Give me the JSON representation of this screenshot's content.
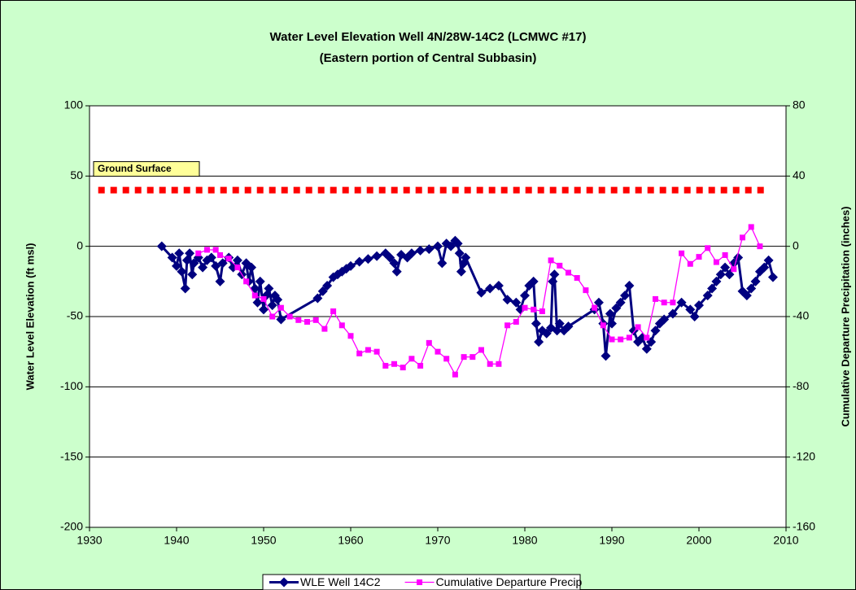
{
  "chart_data": {
    "type": "line",
    "title": "Water Level Elevation Well 4N/28W-14C2 (LCMWC #17)",
    "subtitle": "(Eastern portion of Central Subbasin)",
    "ylabel": "Water Level Elevation (ft msl)",
    "y2label": "Cumulative Departure Precipitation (inches)",
    "xlim": [
      1930,
      2010
    ],
    "xticks": [
      1930,
      1940,
      1950,
      1960,
      1970,
      1980,
      1990,
      2000,
      2010
    ],
    "ylim": [
      -200,
      100
    ],
    "yticks": [
      -200,
      -150,
      -100,
      -50,
      0,
      50,
      100
    ],
    "y2lim": [
      -160,
      80
    ],
    "y2ticks": [
      -160,
      -120,
      -80,
      -40,
      0,
      40,
      80
    ],
    "grid": true,
    "legend": "bottom",
    "annotations": [
      {
        "text": "Ground Surface",
        "value": 40,
        "x": [
          1931,
          2008
        ],
        "color": "#ff0000"
      }
    ],
    "series": [
      {
        "name": "WLE Well 14C2",
        "color": "#000080",
        "marker": "diamond",
        "x": [
          1938.3,
          1939.5,
          1940,
          1940.3,
          1940.6,
          1941,
          1941.2,
          1941.5,
          1941.8,
          1942,
          1942.5,
          1943,
          1943.5,
          1944,
          1944.5,
          1945,
          1945.3,
          1946,
          1946.5,
          1947,
          1947.5,
          1948,
          1948.3,
          1948.6,
          1949,
          1949.3,
          1949.6,
          1950,
          1950.3,
          1950.6,
          1951,
          1951.3,
          1951.6,
          1952,
          1956.2,
          1956.8,
          1957.3,
          1958,
          1958.5,
          1959,
          1959.5,
          1960,
          1961,
          1962,
          1963,
          1964,
          1964.5,
          1965,
          1965.3,
          1965.8,
          1966.5,
          1967,
          1968,
          1969,
          1970,
          1970.5,
          1971,
          1971.5,
          1972,
          1972.3,
          1972.5,
          1972.7,
          1973,
          1973.2,
          1975,
          1976,
          1977,
          1978,
          1979,
          1979.5,
          1980,
          1980.5,
          1981,
          1981.3,
          1981.6,
          1982,
          1982.5,
          1983,
          1983.2,
          1983.4,
          1983.7,
          1984,
          1984.5,
          1985,
          1988,
          1988.5,
          1989,
          1989.3,
          1989.8,
          1990,
          1990.5,
          1991,
          1991.5,
          1992,
          1992.5,
          1993,
          1993.5,
          1994,
          1994.5,
          1995,
          1995.5,
          1996,
          1997,
          1998,
          1999,
          1999.5,
          2000,
          2001,
          2001.5,
          2002,
          2002.5,
          2003,
          2003.5,
          2004,
          2004.5,
          2005,
          2005.5,
          2006,
          2006.5,
          2007,
          2007.5,
          2008,
          2008.5
        ],
        "values": [
          0,
          -8,
          -14,
          -5,
          -18,
          -30,
          -10,
          -5,
          -20,
          -12,
          -8,
          -15,
          -10,
          -8,
          -14,
          -25,
          -12,
          -8,
          -15,
          -10,
          -20,
          -12,
          -25,
          -15,
          -30,
          -40,
          -25,
          -45,
          -35,
          -30,
          -42,
          -35,
          -38,
          -52,
          -37,
          -32,
          -28,
          -22,
          -20,
          -18,
          -16,
          -14,
          -11,
          -9,
          -7,
          -5,
          -8,
          -12,
          -18,
          -6,
          -8,
          -5,
          -3,
          -2,
          0,
          -12,
          2,
          0,
          4,
          2,
          -5,
          -18,
          -12,
          -8,
          -33,
          -30,
          -28,
          -38,
          -40,
          -45,
          -35,
          -28,
          -25,
          -55,
          -68,
          -60,
          -62,
          -58,
          -25,
          -20,
          -60,
          -55,
          -60,
          -57,
          -45,
          -40,
          -55,
          -78,
          -48,
          -55,
          -44,
          -40,
          -35,
          -28,
          -60,
          -68,
          -65,
          -73,
          -68,
          -60,
          -55,
          -52,
          -48,
          -40,
          -45,
          -50,
          -42,
          -35,
          -30,
          -25,
          -20,
          -15,
          -20,
          -12,
          -8,
          -32,
          -35,
          -30,
          -25,
          -18,
          -15,
          -10,
          -22
        ]
      },
      {
        "name": "Cumulative Departure Precip",
        "color": "#ff00ff",
        "marker": "square",
        "axis": "y2",
        "x": [
          1942.5,
          1943.5,
          1944.5,
          1945,
          1946,
          1947,
          1948,
          1949,
          1950,
          1951,
          1952,
          1953,
          1954,
          1955,
          1956,
          1957,
          1958,
          1959,
          1960,
          1961,
          1962,
          1963,
          1964,
          1965,
          1966,
          1967,
          1968,
          1969,
          1970,
          1971,
          1972,
          1973,
          1974,
          1975,
          1976,
          1977,
          1978,
          1979,
          1980,
          1981,
          1982,
          1983,
          1984,
          1985,
          1986,
          1987,
          1988,
          1989,
          1990,
          1991,
          1992,
          1993,
          1994,
          1995,
          1996,
          1997,
          1998,
          1999,
          2000,
          2001,
          2002,
          2003,
          2004,
          2005,
          2006,
          2007
        ],
        "values": [
          -4,
          -2,
          -2,
          -5,
          -7,
          -12,
          -20,
          -28,
          -30,
          -40,
          -35,
          -40,
          -42,
          -43,
          -42,
          -47,
          -37,
          -45,
          -51,
          -61,
          -59,
          -60,
          -68,
          -67,
          -69,
          -64,
          -68,
          -55,
          -60,
          -64,
          -73,
          -63,
          -63,
          -59,
          -67,
          -67,
          -45,
          -43,
          -35,
          -36,
          -37,
          -8,
          -11,
          -15,
          -18,
          -25,
          -35,
          -45,
          -53,
          -53,
          -52,
          -46,
          -52,
          -30,
          -32,
          -32,
          -4,
          -10,
          -6,
          -1,
          -9,
          -5,
          -13,
          5,
          11,
          0
        ]
      }
    ]
  }
}
